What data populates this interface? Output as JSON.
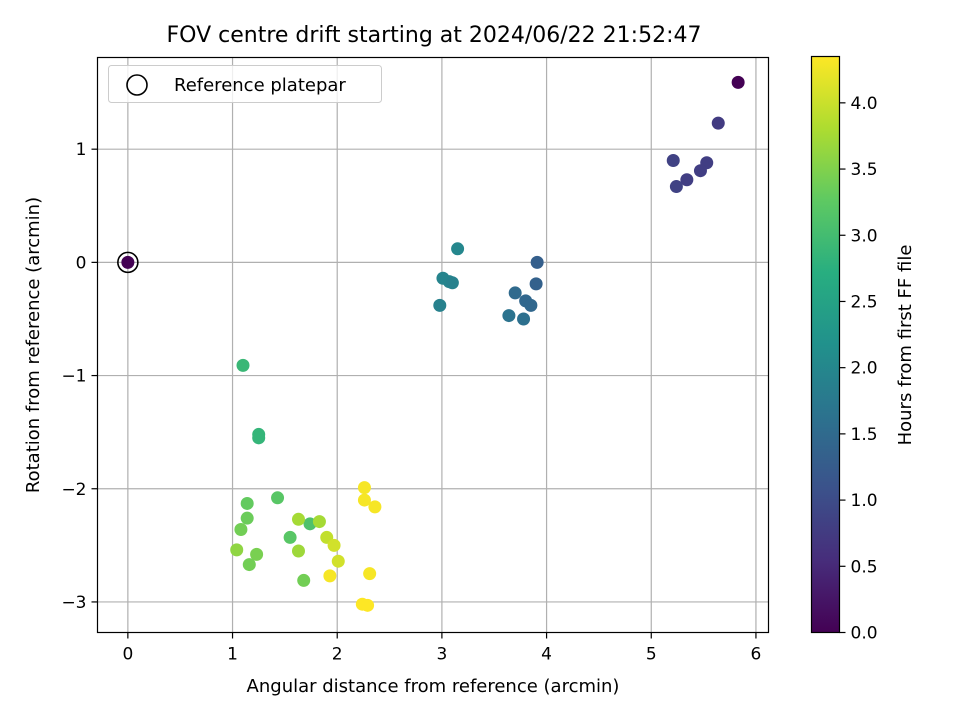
{
  "chart_data": {
    "type": "scatter",
    "title": "FOV centre drift starting at 2024/06/22 21:52:47",
    "xlabel": "Angular distance from reference (arcmin)",
    "ylabel": "Rotation from reference (arcmin)",
    "xlim": [
      -0.29,
      6.12
    ],
    "ylim": [
      -3.27,
      1.81
    ],
    "xticks": [
      0,
      1,
      2,
      3,
      4,
      5,
      6
    ],
    "yticks": [
      -3,
      -2,
      -1,
      0,
      1
    ],
    "grid": true,
    "legend": {
      "placement": "top-left",
      "entries": [
        "Reference platepar"
      ]
    },
    "reference_point": {
      "x": 0,
      "y": 0
    },
    "colorbar": {
      "label": "Hours from first FF file",
      "colormap": "viridis",
      "range": [
        0.0,
        4.35
      ],
      "ticks": [
        0.0,
        0.5,
        1.0,
        1.5,
        2.0,
        2.5,
        3.0,
        3.5,
        4.0
      ]
    },
    "points": [
      {
        "x": 0.0,
        "y": 0.0,
        "hours": 0.0
      },
      {
        "x": 5.83,
        "y": 1.59,
        "hours": 0.0
      },
      {
        "x": 5.64,
        "y": 1.23,
        "hours": 0.75
      },
      {
        "x": 5.21,
        "y": 0.9,
        "hours": 0.85
      },
      {
        "x": 5.53,
        "y": 0.88,
        "hours": 0.8
      },
      {
        "x": 5.47,
        "y": 0.81,
        "hours": 0.8
      },
      {
        "x": 5.34,
        "y": 0.73,
        "hours": 0.8
      },
      {
        "x": 5.24,
        "y": 0.67,
        "hours": 0.85
      },
      {
        "x": 3.91,
        "y": 0.0,
        "hours": 1.3
      },
      {
        "x": 3.9,
        "y": -0.19,
        "hours": 1.35
      },
      {
        "x": 3.7,
        "y": -0.27,
        "hours": 1.5
      },
      {
        "x": 3.8,
        "y": -0.34,
        "hours": 1.45
      },
      {
        "x": 3.85,
        "y": -0.38,
        "hours": 1.45
      },
      {
        "x": 3.64,
        "y": -0.47,
        "hours": 1.65
      },
      {
        "x": 3.78,
        "y": -0.5,
        "hours": 1.6
      },
      {
        "x": 3.15,
        "y": 0.12,
        "hours": 2.0
      },
      {
        "x": 3.01,
        "y": -0.14,
        "hours": 1.95
      },
      {
        "x": 3.07,
        "y": -0.17,
        "hours": 1.95
      },
      {
        "x": 3.1,
        "y": -0.18,
        "hours": 1.9
      },
      {
        "x": 2.98,
        "y": -0.38,
        "hours": 1.9
      },
      {
        "x": 1.1,
        "y": -0.91,
        "hours": 2.9
      },
      {
        "x": 1.25,
        "y": -1.52,
        "hours": 2.85
      },
      {
        "x": 1.25,
        "y": -1.55,
        "hours": 2.85
      },
      {
        "x": 1.14,
        "y": -2.13,
        "hours": 3.3
      },
      {
        "x": 1.43,
        "y": -2.08,
        "hours": 3.2
      },
      {
        "x": 1.14,
        "y": -2.26,
        "hours": 3.35
      },
      {
        "x": 1.74,
        "y": -2.31,
        "hours": 3.1
      },
      {
        "x": 1.08,
        "y": -2.36,
        "hours": 3.4
      },
      {
        "x": 1.55,
        "y": -2.43,
        "hours": 3.2
      },
      {
        "x": 1.04,
        "y": -2.54,
        "hours": 3.6
      },
      {
        "x": 1.23,
        "y": -2.58,
        "hours": 3.45
      },
      {
        "x": 1.63,
        "y": -2.55,
        "hours": 3.7
      },
      {
        "x": 1.16,
        "y": -2.67,
        "hours": 3.4
      },
      {
        "x": 1.68,
        "y": -2.81,
        "hours": 3.4
      },
      {
        "x": 1.63,
        "y": -2.27,
        "hours": 3.75
      },
      {
        "x": 1.83,
        "y": -2.29,
        "hours": 3.75
      },
      {
        "x": 1.9,
        "y": -2.43,
        "hours": 3.95
      },
      {
        "x": 1.97,
        "y": -2.5,
        "hours": 4.05
      },
      {
        "x": 2.01,
        "y": -2.64,
        "hours": 4.05
      },
      {
        "x": 1.93,
        "y": -2.77,
        "hours": 4.3
      },
      {
        "x": 2.26,
        "y": -1.99,
        "hours": 4.3
      },
      {
        "x": 2.26,
        "y": -2.1,
        "hours": 4.3
      },
      {
        "x": 2.36,
        "y": -2.16,
        "hours": 4.3
      },
      {
        "x": 2.31,
        "y": -2.75,
        "hours": 4.3
      },
      {
        "x": 2.24,
        "y": -3.02,
        "hours": 4.35
      },
      {
        "x": 2.29,
        "y": -3.03,
        "hours": 4.35
      }
    ]
  }
}
